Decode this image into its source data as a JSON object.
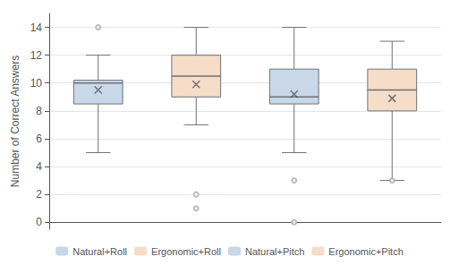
{
  "chart_data": {
    "type": "box",
    "ylabel": "Number of Correct Answers",
    "ylim": [
      -0.5,
      15
    ],
    "yticks": [
      0,
      2,
      4,
      6,
      8,
      10,
      12,
      14
    ],
    "grid": true,
    "tick_labels": "y",
    "legend": "bottom",
    "series": [
      {
        "name": "Natural+Roll",
        "color": "#c8d8e8",
        "whisker_low": 5.0,
        "q1": 8.5,
        "median": 10.0,
        "q3": 10.2,
        "whisker_high": 12.0,
        "mean": 9.5,
        "outliers": [
          14
        ]
      },
      {
        "name": "Ergonomic+Roll",
        "color": "#f5ddc8",
        "whisker_low": 7.0,
        "q1": 9.0,
        "median": 10.5,
        "q3": 12.0,
        "whisker_high": 14.0,
        "mean": 9.9,
        "outliers": [
          2,
          1
        ]
      },
      {
        "name": "Natural+Pitch",
        "color": "#c8d8e8",
        "whisker_low": 5.0,
        "q1": 8.5,
        "median": 9.0,
        "q3": 11.0,
        "whisker_high": 14.0,
        "mean": 9.2,
        "outliers": [
          3,
          0
        ]
      },
      {
        "name": "Ergonomic+Pitch",
        "color": "#f5ddc8",
        "whisker_low": 3.0,
        "q1": 8.0,
        "median": 9.5,
        "q3": 11.0,
        "whisker_high": 13.0,
        "mean": 8.9,
        "outliers": [
          3
        ]
      }
    ]
  }
}
